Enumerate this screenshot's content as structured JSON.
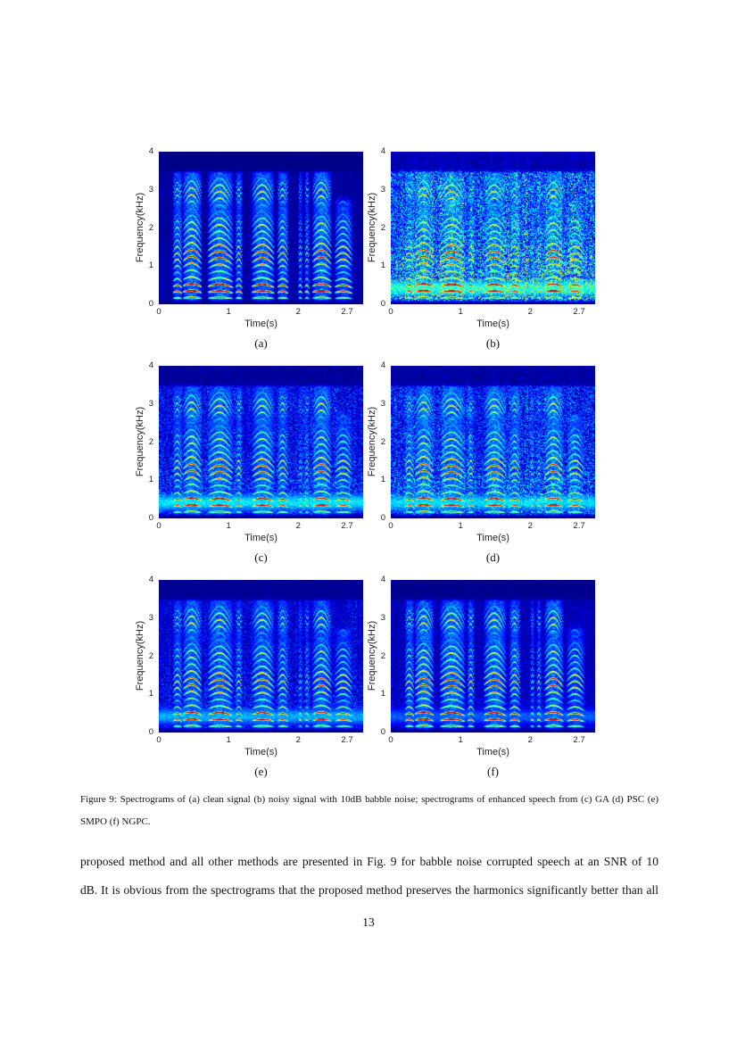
{
  "page": {
    "number": "13",
    "background": "#ffffff"
  },
  "chart_data": {
    "type": "heatmap",
    "subtype": "speech-spectrograms",
    "colormap": "jet",
    "background_color": "#00008f",
    "x": {
      "label": "Time(s)",
      "range": [
        0,
        2.93
      ],
      "ticks": [
        0,
        1,
        2,
        2.7
      ]
    },
    "y": {
      "label": "Frequency(kHz)",
      "range": [
        0,
        4
      ],
      "ticks": [
        4,
        3,
        2,
        1,
        0
      ]
    },
    "panels": [
      {
        "letter": "(a)",
        "description": "clean signal",
        "noise": 0.06,
        "floor": 0.02,
        "lowband": 0.0,
        "speech": 1.0,
        "seed": 101
      },
      {
        "letter": "(b)",
        "description": "noisy signal with 10dB babble noise",
        "noise": 0.5,
        "floor": 0.1,
        "lowband": 0.46,
        "speech": 1.0,
        "seed": 202
      },
      {
        "letter": "(c)",
        "description": "enhanced speech from GA",
        "noise": 0.26,
        "floor": 0.05,
        "lowband": 0.4,
        "speech": 0.96,
        "seed": 303
      },
      {
        "letter": "(d)",
        "description": "enhanced speech from PSC",
        "noise": 0.34,
        "floor": 0.06,
        "lowband": 0.38,
        "speech": 0.96,
        "seed": 404
      },
      {
        "letter": "(e)",
        "description": "enhanced speech from SMPO",
        "noise": 0.2,
        "floor": 0.04,
        "lowband": 0.33,
        "speech": 0.93,
        "seed": 505
      },
      {
        "letter": "(f)",
        "description": "enhanced speech from NGPC",
        "noise": 0.12,
        "floor": 0.03,
        "lowband": 0.24,
        "speech": 0.98,
        "seed": 606
      }
    ],
    "voiced_segments": [
      {
        "t0": 0.2,
        "t1": 0.34,
        "f0": 0.15,
        "amp": 0.8
      },
      {
        "t0": 0.34,
        "t1": 0.62,
        "f0": 0.16,
        "amp": 1.0
      },
      {
        "t0": 0.7,
        "t1": 1.07,
        "f0": 0.155,
        "amp": 1.0
      },
      {
        "t0": 1.1,
        "t1": 1.2,
        "f0": 0.15,
        "amp": 0.78
      },
      {
        "t0": 1.33,
        "t1": 1.66,
        "f0": 0.155,
        "amp": 0.96
      },
      {
        "t0": 1.7,
        "t1": 1.86,
        "f0": 0.15,
        "amp": 0.85
      },
      {
        "t0": 2.0,
        "t1": 2.06,
        "f0": 0.15,
        "amp": 0.6
      },
      {
        "t0": 2.09,
        "t1": 2.16,
        "f0": 0.15,
        "amp": 0.66
      },
      {
        "t0": 2.2,
        "t1": 2.48,
        "f0": 0.158,
        "amp": 0.97
      },
      {
        "t0": 2.52,
        "t1": 2.78,
        "f0": 0.15,
        "amp": 0.8,
        "fmax": 2.6
      }
    ]
  },
  "figure": {
    "caption_line1": "Figure 9: Spectrograms of (a) clean signal (b) noisy signal with 10dB babble noise; spectrograms of enhanced speech from (c) GA (d) PSC (e)",
    "caption_line2": "SMPO (f) NGPC."
  },
  "body": {
    "line1": "proposed method and all other methods are presented in Fig. 9 for babble noise corrupted speech at an SNR of 10",
    "line2": "dB. It is obvious from the spectrograms that the proposed method preserves the harmonics significantly better than all"
  }
}
